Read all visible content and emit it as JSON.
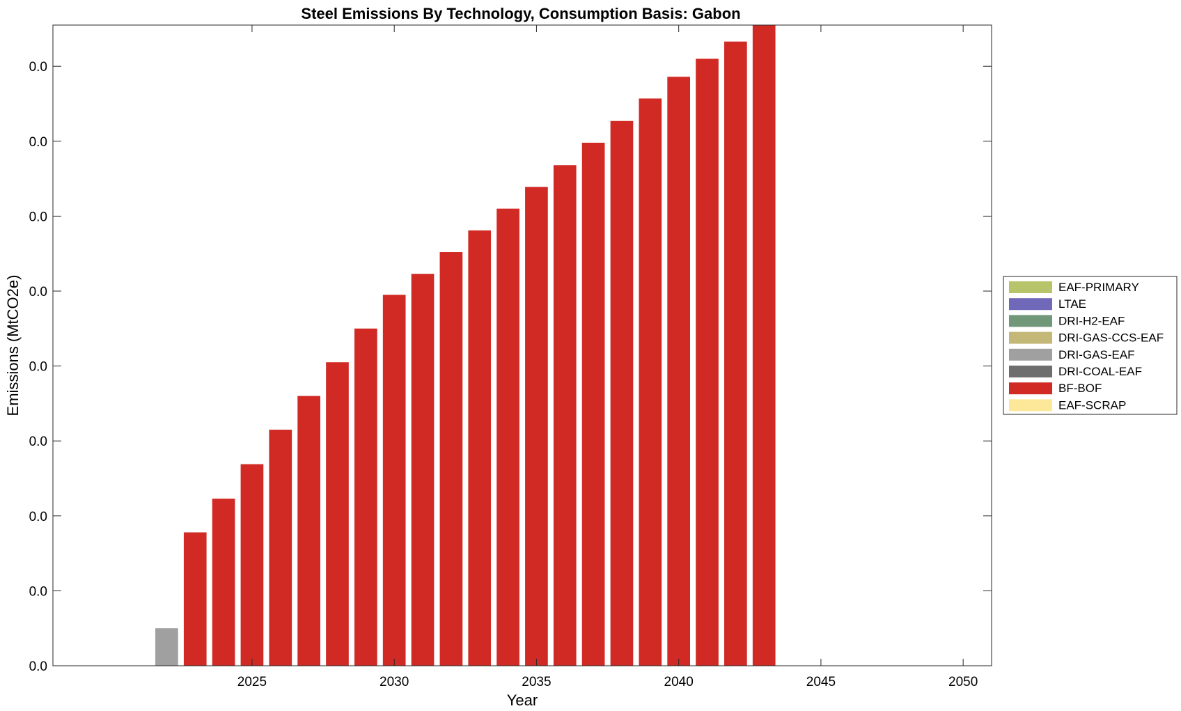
{
  "chart_data": {
    "type": "bar",
    "stacked": true,
    "title": "Steel Emissions By Technology, Consumption Basis: Gabon",
    "xlabel": "Year",
    "ylabel": "Emissions (MtCO2e)",
    "xlim": [
      2018,
      2051
    ],
    "ylim": [
      0,
      0.00855
    ],
    "x_ticks": [
      2025,
      2030,
      2035,
      2040,
      2045,
      2050
    ],
    "x_tick_labels": [
      "2025",
      "2030",
      "2035",
      "2040",
      "2045",
      "2050"
    ],
    "y_ticks": [
      0,
      0.001,
      0.002,
      0.003,
      0.004,
      0.005,
      0.006,
      0.007,
      0.008
    ],
    "y_tick_labels": [
      "0.0",
      "0.0",
      "0.0",
      "0.0",
      "0.0",
      "0.0",
      "0.0",
      "0.0",
      "0.0"
    ],
    "grid": false,
    "legend_position": "right",
    "categories": [
      2022,
      2023,
      2024,
      2025,
      2026,
      2027,
      2028,
      2029,
      2030,
      2031,
      2032,
      2033,
      2034,
      2035,
      2036,
      2037,
      2038,
      2039,
      2040,
      2041,
      2042,
      2043
    ],
    "series": [
      {
        "name": "EAF-PRIMARY",
        "color": "#b8c46a",
        "values": [
          0,
          0,
          0,
          0,
          0,
          0,
          0,
          0,
          0,
          0,
          0,
          0,
          0,
          0,
          0,
          0,
          0,
          0,
          0,
          0,
          0,
          0
        ]
      },
      {
        "name": "LTAE",
        "color": "#7068b8",
        "values": [
          0,
          0,
          0,
          0,
          0,
          0,
          0,
          0,
          0,
          0,
          0,
          0,
          0,
          0,
          0,
          0,
          0,
          0,
          0,
          0,
          0,
          0
        ]
      },
      {
        "name": "DRI-H2-EAF",
        "color": "#72987a",
        "values": [
          0,
          0,
          0,
          0,
          0,
          0,
          0,
          0,
          0,
          0,
          0,
          0,
          0,
          0,
          0,
          0,
          0,
          0,
          0,
          0,
          0,
          0
        ]
      },
      {
        "name": "DRI-GAS-CCS-EAF",
        "color": "#c4b878",
        "values": [
          0,
          0,
          0,
          0,
          0,
          0,
          0,
          0,
          0,
          0,
          0,
          0,
          0,
          0,
          0,
          0,
          0,
          0,
          0,
          0,
          0,
          0
        ]
      },
      {
        "name": "DRI-GAS-EAF",
        "color": "#a0a0a0",
        "values": [
          0.0005,
          0,
          0,
          0,
          0,
          0,
          0,
          0,
          0,
          0,
          0,
          0,
          0,
          0,
          0,
          0,
          0,
          0,
          0,
          0,
          0,
          0
        ]
      },
      {
        "name": "DRI-COAL-EAF",
        "color": "#6e6e6e",
        "values": [
          0,
          0,
          0,
          0,
          0,
          0,
          0,
          0,
          0,
          0,
          0,
          0,
          0,
          0,
          0,
          0,
          0,
          0,
          0,
          0,
          0,
          0
        ]
      },
      {
        "name": "BF-BOF",
        "color": "#d12a24",
        "values": [
          0,
          0.00178,
          0.00223,
          0.00269,
          0.00315,
          0.0036,
          0.00405,
          0.0045,
          0.00495,
          0.00523,
          0.00552,
          0.00581,
          0.0061,
          0.00639,
          0.00668,
          0.00698,
          0.00727,
          0.00757,
          0.00786,
          0.0081,
          0.00833,
          0.00855
        ]
      },
      {
        "name": "EAF-SCRAP",
        "color": "#fde89a",
        "values": [
          0,
          0,
          0,
          0,
          0,
          0,
          0,
          0,
          0,
          0,
          0,
          0,
          0,
          0,
          0,
          0,
          0,
          0,
          0,
          0,
          0,
          0
        ]
      }
    ]
  }
}
